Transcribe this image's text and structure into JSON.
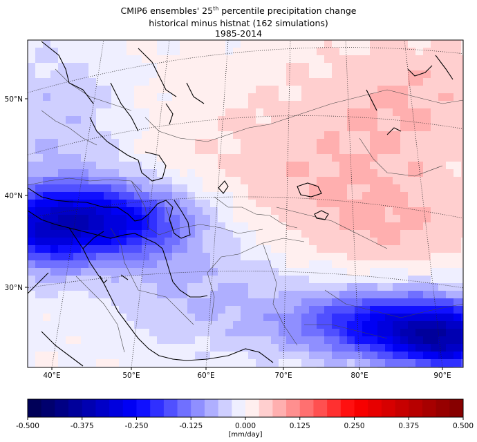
{
  "title": {
    "line1_prefix": "CMIP6 ensembles' 25",
    "line1_sup": "th",
    "line1_suffix": " percentile precipitation change",
    "line2": "historical minus histnat (162 simulations)",
    "line3": "1985-2014"
  },
  "map": {
    "lon_range": [
      37,
      93
    ],
    "lat_range": [
      21.5,
      56
    ],
    "lon_ticks": [
      "40°E",
      "50°E",
      "60°E",
      "70°E",
      "80°E",
      "90°E"
    ],
    "lat_ticks": [
      "50°N",
      "40°N",
      "30°N"
    ],
    "colormap": "seismic",
    "gridlines": "dotted",
    "field_description": "strong negative (blue) over eastern Mediterranean/Iraq and Himalaya/Tibet; weak negative over Caspian/Iran/Afghanistan; weak positive (pink) over Kazakhstan, Central Asia and Siberia"
  },
  "colorbar": {
    "ticks": [
      "-0.500",
      "-0.375",
      "-0.250",
      "-0.125",
      "0.000",
      "0.125",
      "0.250",
      "0.375",
      "0.500"
    ],
    "min": -0.5,
    "max": 0.5,
    "levels": 32,
    "unit_label": "[mm/day]"
  }
}
